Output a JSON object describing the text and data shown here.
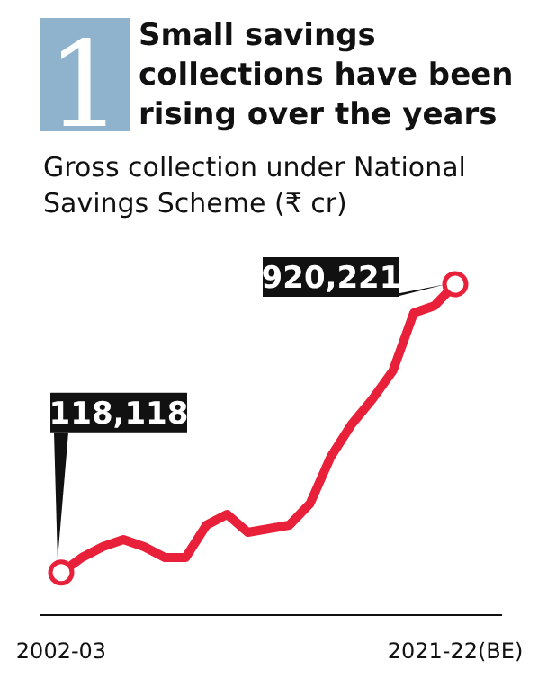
{
  "chart_data": {
    "type": "line",
    "title": "Small savings collections have been rising over the years",
    "subtitle": "Gross collection under National Savings Scheme (₹ cr)",
    "annotations": [
      "1"
    ],
    "categories": [
      "2002-03",
      null,
      null,
      null,
      null,
      null,
      null,
      null,
      null,
      null,
      null,
      null,
      null,
      null,
      null,
      null,
      null,
      null,
      null,
      "2021-22(BE)"
    ],
    "series": [
      {
        "color": "#e8203a",
        "values": [
          118118,
          160000,
          190000,
          210000,
          190000,
          160000,
          160000,
          250000,
          280000,
          230000,
          240000,
          250000,
          310000,
          440000,
          530000,
          600000,
          680000,
          840000,
          860000,
          920221
        ],
        "value_labels": [
          "118,118",
          null,
          null,
          null,
          null,
          null,
          null,
          null,
          null,
          null,
          null,
          null,
          null,
          null,
          null,
          null,
          null,
          null,
          null,
          "920,221"
        ]
      }
    ]
  }
}
